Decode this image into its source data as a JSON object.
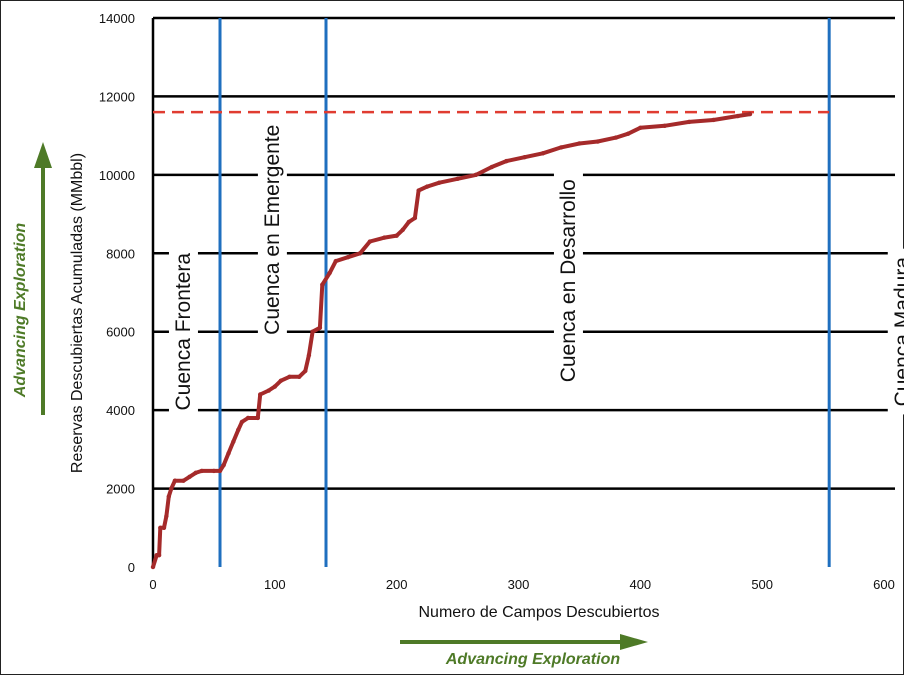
{
  "chart_data": {
    "type": "line",
    "xlabel": "Numero de Campos Descubiertos",
    "ylabel": "Reservas Descubiertas Acumuladas (MMbbl)",
    "xlim": [
      0,
      600
    ],
    "ylim": [
      0,
      14000
    ],
    "x_ticks": [
      "0",
      "100",
      "200",
      "300",
      "400",
      "500",
      "600"
    ],
    "y_ticks": [
      "0",
      "2000",
      "4000",
      "6000",
      "8000",
      "10000",
      "12000",
      "14000"
    ],
    "grid": "horizontal",
    "series": [
      {
        "color": "#a52a2a",
        "points": [
          [
            0,
            0
          ],
          [
            3,
            300
          ],
          [
            5,
            300
          ],
          [
            6,
            1000
          ],
          [
            9,
            1000
          ],
          [
            11,
            1300
          ],
          [
            13,
            1800
          ],
          [
            15,
            2000
          ],
          [
            18,
            2200
          ],
          [
            25,
            2200
          ],
          [
            30,
            2300
          ],
          [
            35,
            2400
          ],
          [
            40,
            2450
          ],
          [
            50,
            2450
          ],
          [
            55,
            2450
          ],
          [
            58,
            2600
          ],
          [
            62,
            2900
          ],
          [
            66,
            3200
          ],
          [
            70,
            3500
          ],
          [
            73,
            3700
          ],
          [
            78,
            3800
          ],
          [
            86,
            3800
          ],
          [
            88,
            4400
          ],
          [
            95,
            4500
          ],
          [
            100,
            4600
          ],
          [
            105,
            4750
          ],
          [
            112,
            4850
          ],
          [
            120,
            4850
          ],
          [
            125,
            5000
          ],
          [
            128,
            5400
          ],
          [
            131,
            6000
          ],
          [
            137,
            6100
          ],
          [
            139,
            7200
          ],
          [
            145,
            7500
          ],
          [
            150,
            7800
          ],
          [
            160,
            7900
          ],
          [
            170,
            8000
          ],
          [
            178,
            8300
          ],
          [
            190,
            8400
          ],
          [
            200,
            8450
          ],
          [
            205,
            8600
          ],
          [
            210,
            8800
          ],
          [
            215,
            8900
          ],
          [
            218,
            9600
          ],
          [
            225,
            9700
          ],
          [
            235,
            9800
          ],
          [
            250,
            9900
          ],
          [
            265,
            10000
          ],
          [
            278,
            10200
          ],
          [
            290,
            10350
          ],
          [
            305,
            10450
          ],
          [
            320,
            10550
          ],
          [
            335,
            10700
          ],
          [
            350,
            10800
          ],
          [
            365,
            10850
          ],
          [
            380,
            10950
          ],
          [
            390,
            11050
          ],
          [
            400,
            11200
          ],
          [
            420,
            11250
          ],
          [
            440,
            11350
          ],
          [
            460,
            11400
          ],
          [
            480,
            11500
          ],
          [
            490,
            11550
          ]
        ]
      }
    ],
    "reference_line": {
      "y": 11600,
      "color": "#e03c31",
      "style": "dashed"
    },
    "vertical_lines": [
      {
        "x": 55,
        "color": "#1f6fbf"
      },
      {
        "x": 142,
        "color": "#1f6fbf"
      },
      {
        "x": 555,
        "color": "#1f6fbf"
      }
    ],
    "regions": [
      {
        "label": "Cuenca Frontera",
        "x": 25,
        "y": 6000
      },
      {
        "label": "Cuenca en Emergente",
        "x": 98,
        "y": 8600
      },
      {
        "label": "Cuenca en Desarrollo",
        "x": 341,
        "y": 7300
      },
      {
        "label": "Cuenca Madura",
        "x": 615,
        "y": 6000
      }
    ],
    "annotations": {
      "advancing_exploration_x": "Advancing Exploration",
      "advancing_exploration_y": "Advancing Exploration"
    }
  }
}
